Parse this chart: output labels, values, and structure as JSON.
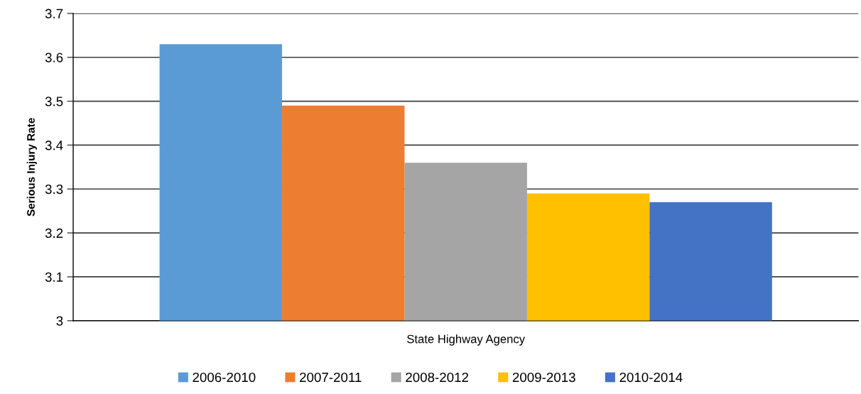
{
  "chart_data": {
    "type": "bar",
    "ylabel": "Serious Injury Rate",
    "categories": [
      "State Highway Agency"
    ],
    "series": [
      {
        "name": "2006-2010",
        "color": "#5b9bd5",
        "values": [
          3.63
        ]
      },
      {
        "name": "2007-2011",
        "color": "#ed7d31",
        "values": [
          3.49
        ]
      },
      {
        "name": "2008-2012",
        "color": "#a5a5a5",
        "values": [
          3.36
        ]
      },
      {
        "name": "2009-2013",
        "color": "#ffc000",
        "values": [
          3.29
        ]
      },
      {
        "name": "2010-2014",
        "color": "#4472c4",
        "values": [
          3.27
        ]
      }
    ],
    "ylim": [
      3,
      3.7
    ],
    "yticks": [
      3,
      3.1,
      3.2,
      3.3,
      3.4,
      3.5,
      3.6,
      3.7
    ],
    "grid": "y",
    "legend": "bottom"
  }
}
